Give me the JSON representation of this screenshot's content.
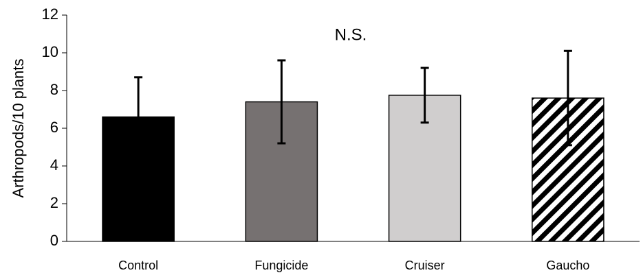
{
  "chart_data": {
    "type": "bar",
    "y_label": "Arthropods/10 plants",
    "annotation": "N.S.",
    "categories": [
      "Control",
      "Fungicide",
      "Cruiser",
      "Gaucho"
    ],
    "values": [
      6.6,
      7.4,
      7.75,
      7.6
    ],
    "errors": [
      2.1,
      2.2,
      1.45,
      2.5
    ],
    "colors": [
      "#000000",
      "#767171",
      "#d0cece",
      "#ffffff"
    ],
    "hatch": [
      false,
      false,
      false,
      true
    ],
    "ylim": [
      0,
      12
    ],
    "yticks": [
      0,
      2,
      4,
      6,
      8,
      10,
      12
    ],
    "grid": false
  }
}
